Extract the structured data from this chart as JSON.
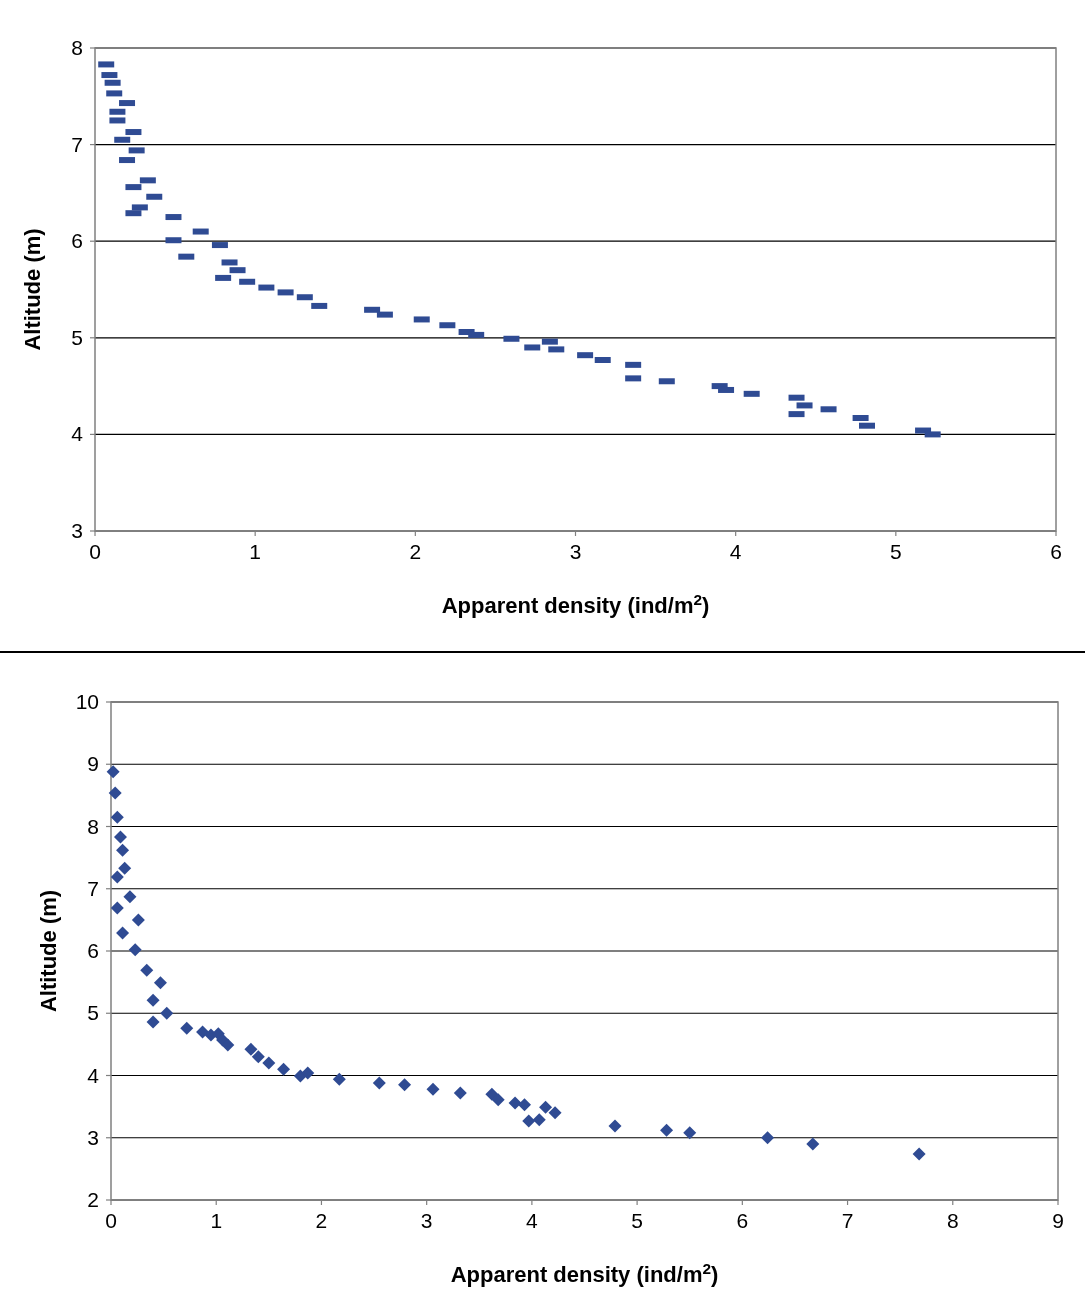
{
  "chart_data": [
    {
      "type": "scatter",
      "xlabel": "Apparent density (ind/m$^{2}$)",
      "ylabel": "Altitude (m)",
      "xlim": [
        0,
        6
      ],
      "ylim": [
        3,
        8
      ],
      "xticks": [
        0,
        1,
        2,
        3,
        4,
        5,
        6
      ],
      "yticks": [
        3,
        4,
        5,
        6,
        7,
        8
      ],
      "grid": "y",
      "series": [
        {
          "color": "#2f4b93",
          "x": [
            0.07,
            0.09,
            0.11,
            0.12,
            0.2,
            0.14,
            0.14,
            0.24,
            0.17,
            0.26,
            0.2,
            0.33,
            0.24,
            0.37,
            0.28,
            0.24,
            0.49,
            0.66,
            0.49,
            0.78,
            0.57,
            0.84,
            0.89,
            0.8,
            0.95,
            1.07,
            1.19,
            1.31,
            1.4,
            1.73,
            1.81,
            2.04,
            2.2,
            2.32,
            2.38,
            2.6,
            2.73,
            2.84,
            2.88,
            3.06,
            3.17,
            3.36,
            3.36,
            3.57,
            3.9,
            3.94,
            4.1,
            4.38,
            4.43,
            4.38,
            4.58,
            4.78,
            4.82,
            5.17,
            5.23
          ],
          "values": [
            7.83,
            7.72,
            7.64,
            7.53,
            7.43,
            7.34,
            7.25,
            7.13,
            7.05,
            6.94,
            6.84,
            6.63,
            6.56,
            6.46,
            6.35,
            6.29,
            6.25,
            6.1,
            6.01,
            5.96,
            5.84,
            5.78,
            5.7,
            5.62,
            5.58,
            5.52,
            5.47,
            5.42,
            5.33,
            5.29,
            5.24,
            5.19,
            5.13,
            5.06,
            5.03,
            4.99,
            4.9,
            4.96,
            4.88,
            4.82,
            4.77,
            4.72,
            4.58,
            4.55,
            4.5,
            4.46,
            4.42,
            4.38,
            4.3,
            4.21,
            4.26,
            4.17,
            4.09,
            4.04,
            4.0
          ]
        }
      ]
    },
    {
      "type": "scatter",
      "xlabel": "Apparent density (ind/m$^{2}$)",
      "ylabel": "Altitude (m)",
      "xlim": [
        0,
        9
      ],
      "ylim": [
        2,
        10
      ],
      "xticks": [
        0,
        1,
        2,
        3,
        4,
        5,
        6,
        7,
        8,
        9
      ],
      "yticks": [
        2,
        3,
        4,
        5,
        6,
        7,
        8,
        9,
        10
      ],
      "grid": "y",
      "marker": "diamond",
      "series": [
        {
          "color": "#2f4b93",
          "x": [
            0.02,
            0.04,
            0.06,
            0.09,
            0.11,
            0.13,
            0.06,
            0.18,
            0.06,
            0.26,
            0.11,
            0.23,
            0.34,
            0.47,
            0.4,
            0.53,
            0.4,
            0.72,
            0.87,
            0.95,
            1.02,
            1.06,
            1.11,
            1.33,
            1.4,
            1.5,
            1.64,
            1.8,
            1.87,
            2.17,
            2.55,
            2.79,
            3.06,
            3.32,
            3.62,
            3.68,
            3.84,
            3.93,
            3.97,
            4.07,
            4.13,
            4.22,
            4.79,
            5.28,
            5.5,
            6.24,
            6.67,
            7.68
          ],
          "values": [
            8.88,
            8.54,
            8.15,
            7.83,
            7.62,
            7.33,
            7.19,
            6.87,
            6.69,
            6.5,
            6.29,
            6.02,
            5.69,
            5.49,
            5.21,
            5.0,
            4.86,
            4.76,
            4.7,
            4.65,
            4.67,
            4.57,
            4.49,
            4.42,
            4.3,
            4.2,
            4.1,
            3.99,
            4.04,
            3.94,
            3.88,
            3.85,
            3.78,
            3.72,
            3.7,
            3.61,
            3.56,
            3.53,
            3.27,
            3.29,
            3.49,
            3.4,
            3.19,
            3.12,
            3.08,
            3.0,
            2.9,
            2.74
          ]
        }
      ]
    }
  ]
}
